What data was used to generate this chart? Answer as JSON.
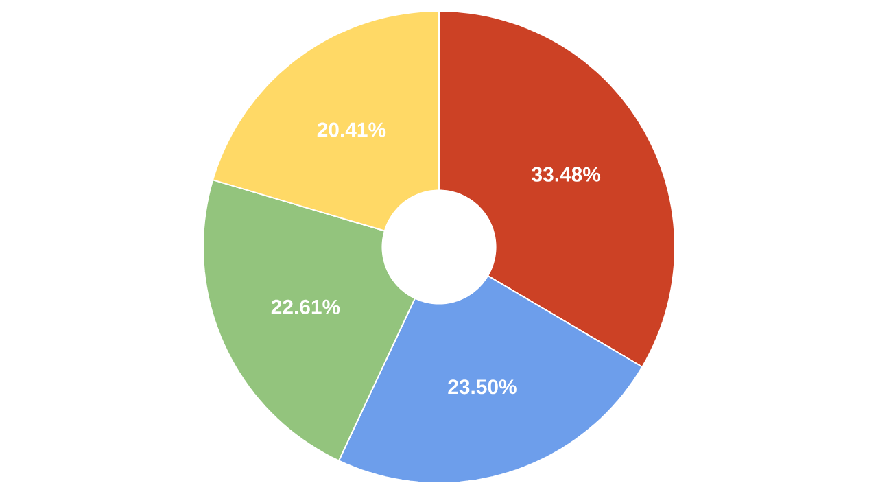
{
  "chart_data": {
    "type": "donut",
    "categories": [
      null,
      null,
      null,
      null
    ],
    "values": [
      33.48,
      23.5,
      22.61,
      20.41
    ],
    "colors": [
      "#cc4125",
      "#6d9eeb",
      "#93c47d",
      "#ffd966"
    ],
    "value_labels": [
      "33.48%",
      "23.50%",
      "22.61%",
      "20.41%"
    ]
  }
}
